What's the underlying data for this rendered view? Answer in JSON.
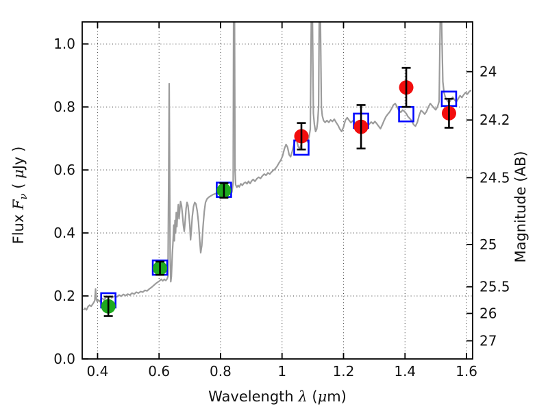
{
  "figure": {
    "background": "#ffffff",
    "text_color": "#111111"
  },
  "chart_data": {
    "type": "line",
    "title": "",
    "xlabel": "Wavelength λ (μm)",
    "ylabel_left": "Flux Fν ( μJy )",
    "ylabel_right": "Magnitude (AB)",
    "xlabel_parts": [
      {
        "text": "Wavelength ",
        "math": false
      },
      {
        "text": "λ",
        "math": true
      },
      {
        "text": " (",
        "math": false
      },
      {
        "text": "μ",
        "math": true
      },
      {
        "text": "m)",
        "math": false
      }
    ],
    "ylabel_left_parts": [
      {
        "text": "Flux ",
        "math": false
      },
      {
        "text": "F",
        "math": true
      },
      {
        "text": "ν",
        "math": true,
        "sub": true
      },
      {
        "text": " ( ",
        "math": false
      },
      {
        "text": "μ",
        "math": true
      },
      {
        "text": "Jy )",
        "math": false
      }
    ],
    "ylabel_right_parts": [
      {
        "text": "Magnitude (AB)",
        "math": false
      }
    ],
    "xlim": [
      0.35,
      1.62
    ],
    "ylim": [
      0,
      1.07
    ],
    "grid": "dotted",
    "legend": "none",
    "x_ticks": {
      "values": [
        0.4,
        0.6,
        0.8,
        1.0,
        1.2,
        1.4,
        1.6
      ],
      "labels": [
        "0.4",
        "0.6",
        "0.8",
        "1",
        "1.2",
        "1.4",
        "1.6"
      ]
    },
    "y_ticks_flux": {
      "values": [
        0.0,
        0.2,
        0.4,
        0.6,
        0.8,
        1.0
      ],
      "labels": [
        "0.0",
        "0.2",
        "0.4",
        "0.6",
        "0.8",
        "1.0"
      ]
    },
    "y_ticks_mag": {
      "values": [
        24,
        24.2,
        24.5,
        25,
        25.5,
        26,
        27
      ],
      "labels": [
        "24",
        "24.2",
        "24.5",
        "25",
        "25.5",
        "26",
        "27"
      ],
      "ab_zeropoint_ujy": 23.9
    },
    "colors": {
      "spectrum": "#9b9b9b",
      "model_square": "#0008ff",
      "optical_point": "#1eaa1e",
      "nir_point": "#f20d0d",
      "error_bar": "#000000",
      "frame": "#000000",
      "grid": "#4a4a4a"
    },
    "series": [
      {
        "name": "model-spectrum",
        "type": "line",
        "color": "#9b9b9b",
        "note": "values above ylim are emission lines clipped at the axes frame",
        "points": [
          [
            0.354,
            0.155
          ],
          [
            0.359,
            0.161
          ],
          [
            0.364,
            0.156
          ],
          [
            0.369,
            0.166
          ],
          [
            0.374,
            0.171
          ],
          [
            0.379,
            0.167
          ],
          [
            0.384,
            0.174
          ],
          [
            0.388,
            0.18
          ],
          [
            0.391,
            0.186
          ],
          [
            0.3935,
            0.222
          ],
          [
            0.396,
            0.19
          ],
          [
            0.399,
            0.182
          ],
          [
            0.403,
            0.187
          ],
          [
            0.407,
            0.182
          ],
          [
            0.411,
            0.189
          ],
          [
            0.416,
            0.192
          ],
          [
            0.421,
            0.187
          ],
          [
            0.426,
            0.194
          ],
          [
            0.431,
            0.198
          ],
          [
            0.436,
            0.195
          ],
          [
            0.441,
            0.199
          ],
          [
            0.446,
            0.194
          ],
          [
            0.451,
            0.197
          ],
          [
            0.457,
            0.2
          ],
          [
            0.463,
            0.197
          ],
          [
            0.47,
            0.203
          ],
          [
            0.477,
            0.199
          ],
          [
            0.484,
            0.205
          ],
          [
            0.491,
            0.201
          ],
          [
            0.498,
            0.206
          ],
          [
            0.505,
            0.203
          ],
          [
            0.512,
            0.209
          ],
          [
            0.519,
            0.206
          ],
          [
            0.526,
            0.212
          ],
          [
            0.533,
            0.209
          ],
          [
            0.54,
            0.214
          ],
          [
            0.547,
            0.212
          ],
          [
            0.554,
            0.218
          ],
          [
            0.561,
            0.216
          ],
          [
            0.568,
            0.222
          ],
          [
            0.575,
            0.227
          ],
          [
            0.582,
            0.233
          ],
          [
            0.589,
            0.239
          ],
          [
            0.596,
            0.244
          ],
          [
            0.602,
            0.248
          ],
          [
            0.607,
            0.253
          ],
          [
            0.612,
            0.248
          ],
          [
            0.617,
            0.253
          ],
          [
            0.622,
            0.249
          ],
          [
            0.626,
            0.254
          ],
          [
            0.629,
            0.262
          ],
          [
            0.6315,
            0.6
          ],
          [
            0.633,
            0.874
          ],
          [
            0.6345,
            0.58
          ],
          [
            0.636,
            0.32
          ],
          [
            0.638,
            0.245
          ],
          [
            0.64,
            0.262
          ],
          [
            0.643,
            0.33
          ],
          [
            0.646,
            0.385
          ],
          [
            0.648,
            0.425
          ],
          [
            0.65,
            0.375
          ],
          [
            0.652,
            0.44
          ],
          [
            0.654,
            0.4
          ],
          [
            0.656,
            0.465
          ],
          [
            0.658,
            0.42
          ],
          [
            0.66,
            0.455
          ],
          [
            0.6625,
            0.49
          ],
          [
            0.665,
            0.445
          ],
          [
            0.6675,
            0.475
          ],
          [
            0.67,
            0.5
          ],
          [
            0.673,
            0.487
          ],
          [
            0.676,
            0.46
          ],
          [
            0.679,
            0.425
          ],
          [
            0.682,
            0.405
          ],
          [
            0.685,
            0.44
          ],
          [
            0.688,
            0.478
          ],
          [
            0.691,
            0.497
          ],
          [
            0.694,
            0.488
          ],
          [
            0.697,
            0.46
          ],
          [
            0.7,
            0.424
          ],
          [
            0.7025,
            0.378
          ],
          [
            0.705,
            0.408
          ],
          [
            0.708,
            0.452
          ],
          [
            0.712,
            0.484
          ],
          [
            0.716,
            0.497
          ],
          [
            0.72,
            0.492
          ],
          [
            0.724,
            0.47
          ],
          [
            0.728,
            0.435
          ],
          [
            0.732,
            0.383
          ],
          [
            0.7355,
            0.337
          ],
          [
            0.739,
            0.36
          ],
          [
            0.743,
            0.42
          ],
          [
            0.747,
            0.468
          ],
          [
            0.751,
            0.497
          ],
          [
            0.756,
            0.508
          ],
          [
            0.761,
            0.513
          ],
          [
            0.767,
            0.517
          ],
          [
            0.774,
            0.521
          ],
          [
            0.781,
            0.524
          ],
          [
            0.789,
            0.526
          ],
          [
            0.797,
            0.527
          ],
          [
            0.805,
            0.529
          ],
          [
            0.813,
            0.527
          ],
          [
            0.82,
            0.534
          ],
          [
            0.826,
            0.529
          ],
          [
            0.832,
            0.522
          ],
          [
            0.837,
            0.53
          ],
          [
            0.841,
            0.56
          ],
          [
            0.8425,
            1.2
          ],
          [
            0.8455,
            1.2
          ],
          [
            0.847,
            0.6
          ],
          [
            0.849,
            0.553
          ],
          [
            0.853,
            0.545
          ],
          [
            0.857,
            0.551
          ],
          [
            0.861,
            0.546
          ],
          [
            0.866,
            0.556
          ],
          [
            0.871,
            0.551
          ],
          [
            0.876,
            0.558
          ],
          [
            0.881,
            0.561
          ],
          [
            0.886,
            0.556
          ],
          [
            0.891,
            0.564
          ],
          [
            0.896,
            0.557
          ],
          [
            0.901,
            0.565
          ],
          [
            0.906,
            0.57
          ],
          [
            0.912,
            0.564
          ],
          [
            0.918,
            0.572
          ],
          [
            0.924,
            0.577
          ],
          [
            0.93,
            0.573
          ],
          [
            0.936,
            0.581
          ],
          [
            0.942,
            0.587
          ],
          [
            0.948,
            0.583
          ],
          [
            0.954,
            0.591
          ],
          [
            0.96,
            0.587
          ],
          [
            0.966,
            0.594
          ],
          [
            0.972,
            0.599
          ],
          [
            0.978,
            0.604
          ],
          [
            0.984,
            0.612
          ],
          [
            0.99,
            0.622
          ],
          [
            0.996,
            0.631
          ],
          [
            1.002,
            0.645
          ],
          [
            1.008,
            0.668
          ],
          [
            1.013,
            0.681
          ],
          [
            1.018,
            0.672
          ],
          [
            1.023,
            0.648
          ],
          [
            1.028,
            0.642
          ],
          [
            1.033,
            0.658
          ],
          [
            1.038,
            0.678
          ],
          [
            1.043,
            0.695
          ],
          [
            1.048,
            0.692
          ],
          [
            1.053,
            0.673
          ],
          [
            1.058,
            0.669
          ],
          [
            1.063,
            0.684
          ],
          [
            1.068,
            0.703
          ],
          [
            1.073,
            0.717
          ],
          [
            1.078,
            0.71
          ],
          [
            1.083,
            0.689
          ],
          [
            1.088,
            0.705
          ],
          [
            1.092,
            0.73
          ],
          [
            1.095,
            1.2
          ],
          [
            1.099,
            1.2
          ],
          [
            1.102,
            0.78
          ],
          [
            1.105,
            0.745
          ],
          [
            1.109,
            0.722
          ],
          [
            1.113,
            0.73
          ],
          [
            1.116,
            0.755
          ],
          [
            1.119,
            0.8
          ],
          [
            1.121,
            1.2
          ],
          [
            1.125,
            1.2
          ],
          [
            1.128,
            0.8
          ],
          [
            1.131,
            0.772
          ],
          [
            1.135,
            0.757
          ],
          [
            1.14,
            0.751
          ],
          [
            1.146,
            0.757
          ],
          [
            1.152,
            0.751
          ],
          [
            1.158,
            0.759
          ],
          [
            1.164,
            0.754
          ],
          [
            1.17,
            0.761
          ],
          [
            1.176,
            0.751
          ],
          [
            1.182,
            0.742
          ],
          [
            1.188,
            0.73
          ],
          [
            1.194,
            0.722
          ],
          [
            1.2,
            0.736
          ],
          [
            1.206,
            0.758
          ],
          [
            1.212,
            0.766
          ],
          [
            1.218,
            0.758
          ],
          [
            1.224,
            0.75
          ],
          [
            1.23,
            0.756
          ],
          [
            1.236,
            0.749
          ],
          [
            1.242,
            0.753
          ],
          [
            1.248,
            0.746
          ],
          [
            1.254,
            0.749
          ],
          [
            1.26,
            0.741
          ],
          [
            1.266,
            0.736
          ],
          [
            1.272,
            0.731
          ],
          [
            1.278,
            0.739
          ],
          [
            1.284,
            0.746
          ],
          [
            1.29,
            0.752
          ],
          [
            1.296,
            0.747
          ],
          [
            1.302,
            0.754
          ],
          [
            1.308,
            0.747
          ],
          [
            1.314,
            0.739
          ],
          [
            1.32,
            0.731
          ],
          [
            1.326,
            0.743
          ],
          [
            1.332,
            0.757
          ],
          [
            1.338,
            0.769
          ],
          [
            1.344,
            0.777
          ],
          [
            1.35,
            0.784
          ],
          [
            1.356,
            0.794
          ],
          [
            1.362,
            0.806
          ],
          [
            1.368,
            0.811
          ],
          [
            1.374,
            0.801
          ],
          [
            1.38,
            0.789
          ],
          [
            1.386,
            0.783
          ],
          [
            1.392,
            0.79
          ],
          [
            1.398,
            0.786
          ],
          [
            1.404,
            0.779
          ],
          [
            1.41,
            0.769
          ],
          [
            1.416,
            0.763
          ],
          [
            1.422,
            0.756
          ],
          [
            1.428,
            0.744
          ],
          [
            1.434,
            0.739
          ],
          [
            1.44,
            0.751
          ],
          [
            1.446,
            0.773
          ],
          [
            1.452,
            0.789
          ],
          [
            1.458,
            0.784
          ],
          [
            1.464,
            0.777
          ],
          [
            1.47,
            0.786
          ],
          [
            1.476,
            0.8
          ],
          [
            1.482,
            0.811
          ],
          [
            1.488,
            0.804
          ],
          [
            1.494,
            0.797
          ],
          [
            1.5,
            0.791
          ],
          [
            1.506,
            0.801
          ],
          [
            1.511,
            0.818
          ],
          [
            1.5145,
            1.2
          ],
          [
            1.519,
            1.2
          ],
          [
            1.523,
            0.88
          ],
          [
            1.527,
            0.845
          ],
          [
            1.531,
            0.831
          ],
          [
            1.537,
            0.821
          ],
          [
            1.543,
            0.813
          ],
          [
            1.549,
            0.822
          ],
          [
            1.555,
            0.831
          ],
          [
            1.561,
            0.823
          ],
          [
            1.567,
            0.816
          ],
          [
            1.573,
            0.826
          ],
          [
            1.579,
            0.836
          ],
          [
            1.585,
            0.83
          ],
          [
            1.591,
            0.839
          ],
          [
            1.597,
            0.846
          ],
          [
            1.603,
            0.841
          ],
          [
            1.609,
            0.849
          ],
          [
            1.615,
            0.853
          ]
        ]
      },
      {
        "name": "model-photometry",
        "type": "scatter",
        "marker": "open-square",
        "color": "#0008ff",
        "points": [
          {
            "x": 0.435,
            "y": 0.186
          },
          {
            "x": 0.603,
            "y": 0.29
          },
          {
            "x": 0.811,
            "y": 0.537
          },
          {
            "x": 1.063,
            "y": 0.671
          },
          {
            "x": 1.257,
            "y": 0.756
          },
          {
            "x": 1.404,
            "y": 0.777
          },
          {
            "x": 1.543,
            "y": 0.826
          }
        ]
      },
      {
        "name": "observed-photometry-optical",
        "type": "scatter",
        "marker": "filled-circle",
        "color": "#1eaa1e",
        "points": [
          {
            "x": 0.435,
            "y": 0.167,
            "yerr": 0.031
          },
          {
            "x": 0.603,
            "y": 0.288,
            "yerr": 0.021
          },
          {
            "x": 0.811,
            "y": 0.535,
            "yerr": 0.023
          }
        ]
      },
      {
        "name": "observed-photometry-nir",
        "type": "scatter",
        "marker": "filled-circle",
        "color": "#f20d0d",
        "points": [
          {
            "x": 1.063,
            "y": 0.707,
            "yerr": 0.042
          },
          {
            "x": 1.257,
            "y": 0.737,
            "yerr": 0.069
          },
          {
            "x": 1.404,
            "y": 0.862,
            "yerr": 0.062
          },
          {
            "x": 1.543,
            "y": 0.78,
            "yerr": 0.046
          }
        ]
      }
    ]
  }
}
